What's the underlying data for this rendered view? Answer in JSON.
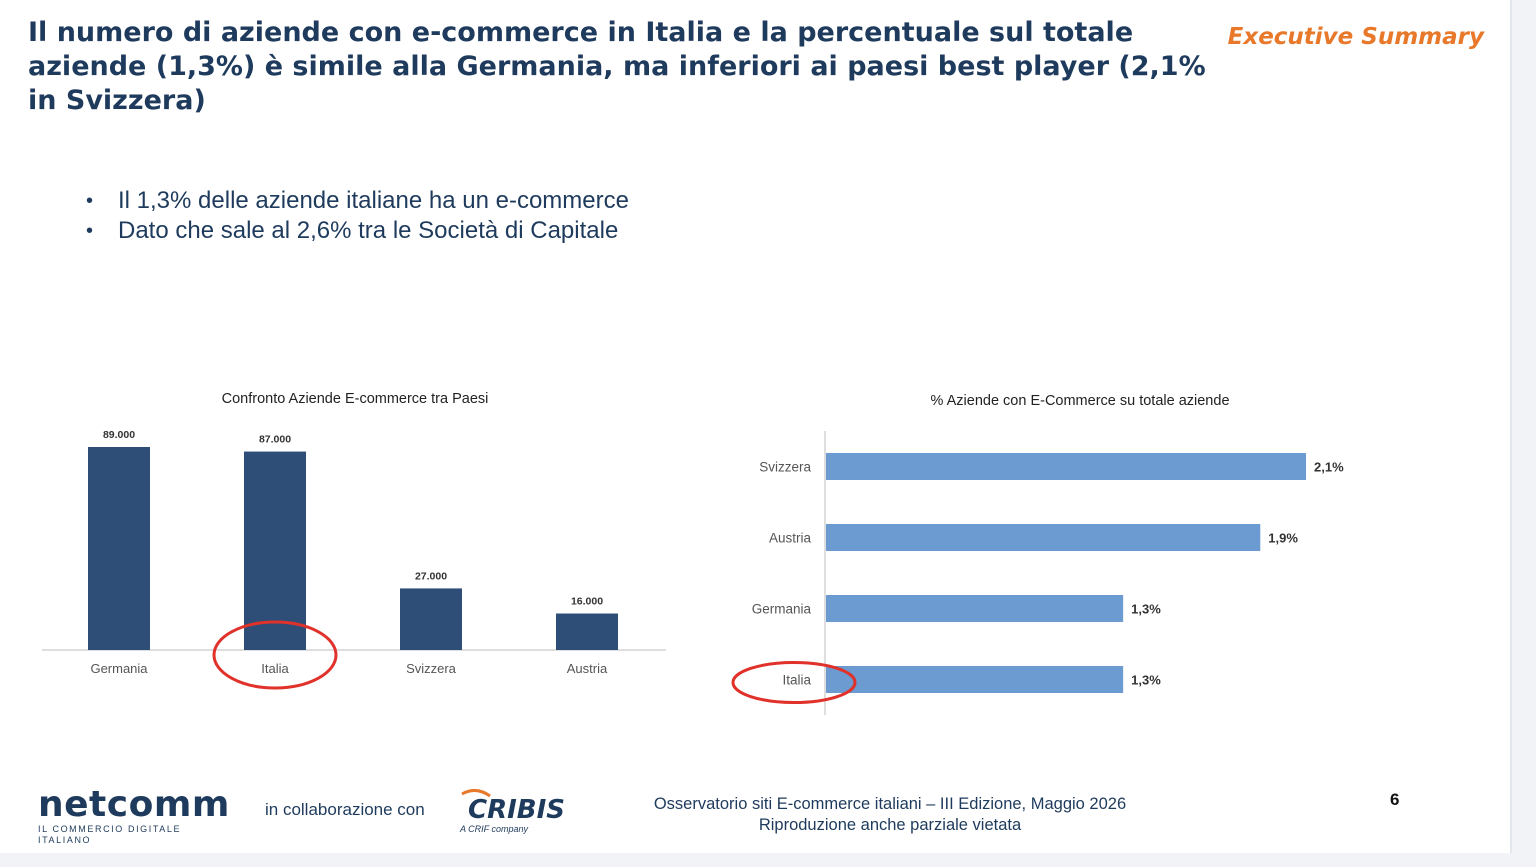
{
  "header": {
    "title": "Il numero di aziende con e-commerce in Italia e la percentuale sul totale aziende (1,3%) è simile alla Germania, ma inferiori ai paesi best player (2,1% in Svizzera)",
    "section_tag": "Executive Summary"
  },
  "bullets": [
    "Il 1,3% delle aziende italiane ha un e-commerce",
    "Dato che sale al 2,6% tra le Società di Capitale"
  ],
  "chart_data": [
    {
      "type": "bar",
      "orientation": "vertical",
      "title": "Confronto Aziende E-commerce tra Paesi",
      "categories": [
        "Germania",
        "Italia",
        "Svizzera",
        "Austria"
      ],
      "values": [
        89000,
        87000,
        27000,
        16000
      ],
      "value_labels": [
        "89.000",
        "87.000",
        "27.000",
        "16.000"
      ],
      "ylim": [
        0,
        89000
      ],
      "grid": false,
      "highlight": "Italia",
      "colors": {
        "bar": "#2e4e78",
        "highlight_ring": "#e0312a"
      }
    },
    {
      "type": "bar",
      "orientation": "horizontal",
      "title": "% Aziende con E-Commerce su totale aziende",
      "categories": [
        "Svizzera",
        "Austria",
        "Germania",
        "Italia"
      ],
      "values": [
        2.1,
        1.9,
        1.3,
        1.3
      ],
      "value_labels": [
        "2,1%",
        "1,9%",
        "1,3%",
        "1,3%"
      ],
      "xlim": [
        0,
        2.1
      ],
      "grid": false,
      "highlight": "Italia",
      "colors": {
        "bar": "#6b9bd1",
        "highlight_ring": "#e0312a"
      }
    }
  ],
  "footer": {
    "logo_word": "netcomm",
    "logo_tagline": "IL COMMERCIO DIGITALE ITALIANO",
    "collab_text": "in collaborazione con",
    "partner_logo": "CRIBIS",
    "partner_tagline": "A CRIF company",
    "note_line1": "Osservatorio siti E-commerce italiani – III Edizione, Maggio 2026",
    "note_line2": "Riproduzione anche parziale vietata",
    "page_number": "6"
  }
}
